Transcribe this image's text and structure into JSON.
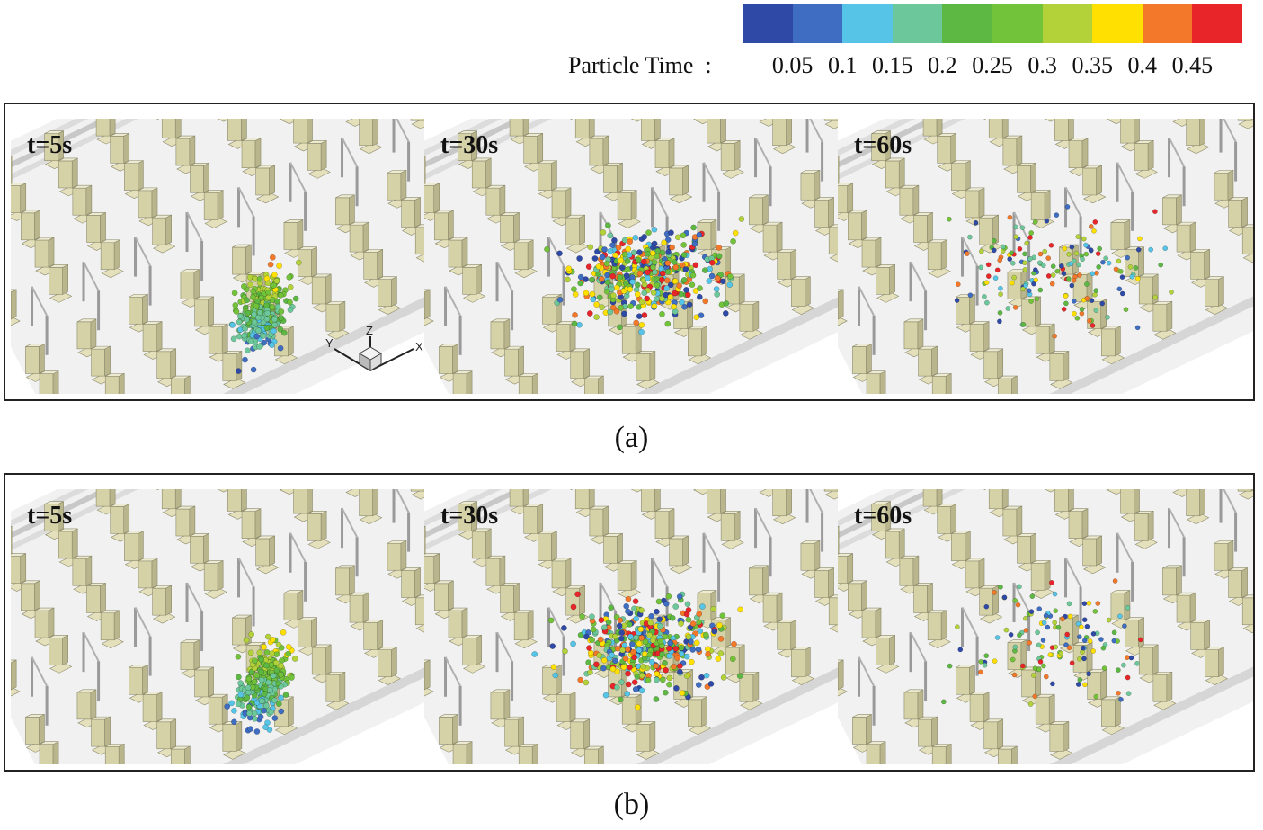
{
  "legend": {
    "title": "Particle Time",
    "separator": ":",
    "ticks": [
      "0.05",
      "0.1",
      "0.15",
      "0.2",
      "0.25",
      "0.3",
      "0.35",
      "0.4",
      "0.45"
    ],
    "colors": [
      "#2f4aa6",
      "#3e6dc2",
      "#55c4e6",
      "#6cc89a",
      "#5cb843",
      "#72c23a",
      "#b3d23a",
      "#ffe000",
      "#f4782a",
      "#e8262a"
    ]
  },
  "panels": [
    {
      "caption": "(a)",
      "scenes": [
        {
          "time": "t=5s"
        },
        {
          "time": "t=30s"
        },
        {
          "time": "t=60s"
        }
      ],
      "axes": {
        "y": "Y",
        "z": "Z",
        "x": "X"
      }
    },
    {
      "caption": "(b)",
      "scenes": [
        {
          "time": "t=5s"
        },
        {
          "time": "t=30s"
        },
        {
          "time": "t=60s"
        }
      ]
    }
  ]
}
